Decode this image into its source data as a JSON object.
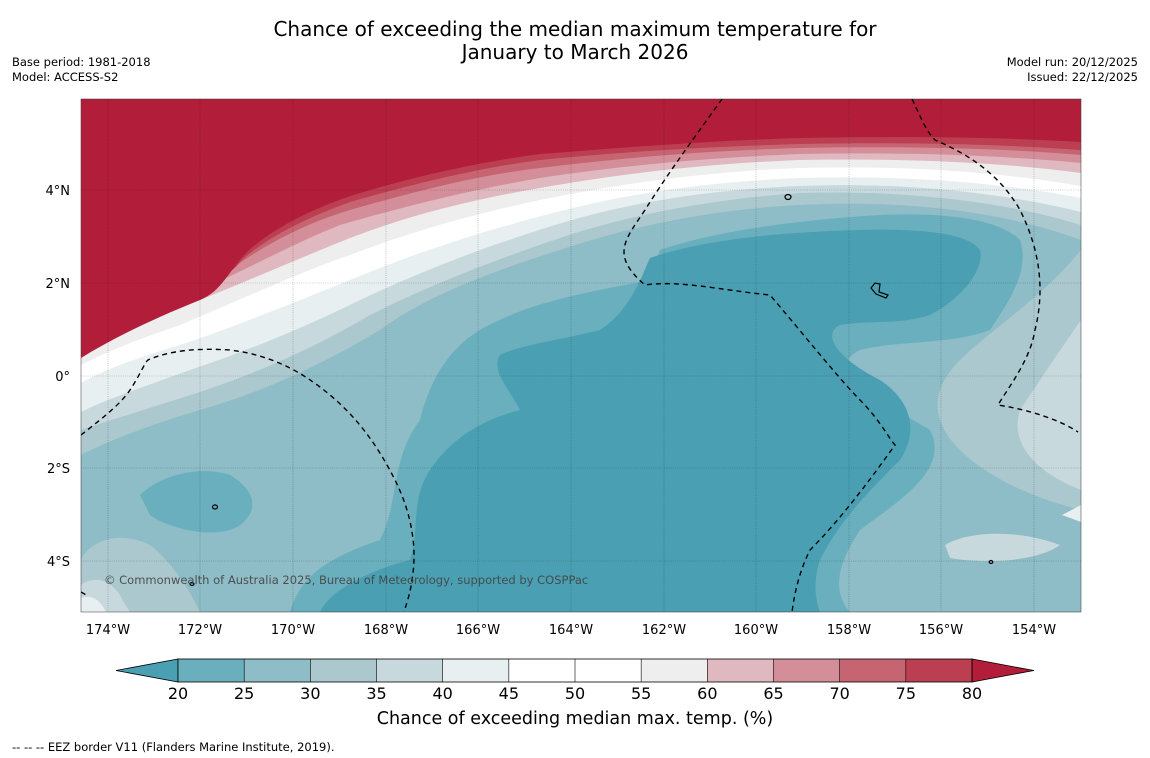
{
  "title": {
    "line1": "Chance of exceeding the median maximum temperature for",
    "line2": "January to March 2026"
  },
  "meta_left": {
    "base_period": "Base period: 1981-2018",
    "model": "Model: ACCESS-S2"
  },
  "meta_right": {
    "model_run": "Model run: 20/12/2025",
    "issued": "Issued: 22/12/2025"
  },
  "map": {
    "copyright": "© Commonwealth of Australia 2025, Bureau of Meteorology, supported by COSPPac",
    "lon_ticks": [
      "174°W",
      "172°W",
      "170°W",
      "168°W",
      "166°W",
      "164°W",
      "162°W",
      "160°W",
      "158°W",
      "156°W",
      "154°W"
    ],
    "lat_ticks": [
      "4°N",
      "2°N",
      "0°",
      "2°S",
      "4°S"
    ]
  },
  "colorbar": {
    "ticks": [
      "20",
      "25",
      "30",
      "35",
      "40",
      "45",
      "50",
      "55",
      "60",
      "65",
      "70",
      "75",
      "80"
    ],
    "label": "Chance of exceeding median max. temp. (%)",
    "colors": [
      "#4aa0b2",
      "#6aafbd",
      "#8ebcc7",
      "#aac8ce",
      "#c8d9de",
      "#e8eff1",
      "#ffffff",
      "#ffffff",
      "#eeeeef",
      "#e0b8bf",
      "#d48e99",
      "#c76472",
      "#bb3e51",
      "#b21e3a"
    ]
  },
  "footnote": "--  --  -- EEZ border V11 (Flanders Marine Institute, 2019)."
}
